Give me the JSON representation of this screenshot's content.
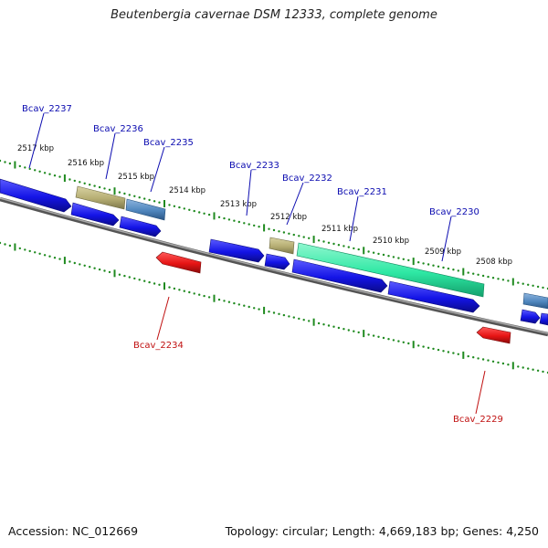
{
  "title": "Beutenbergia cavernae DSM 12333, complete genome",
  "footer": {
    "accession": "Accession: NC_012669",
    "topology": "Topology: circular; Length: 4,669,183 bp; Genes: 4,250"
  },
  "colors": {
    "forward_gene": "#1414e6",
    "reverse_gene": "#e61414",
    "olive_feature": "#b5ad72",
    "steelblue_feature": "#4f86bd",
    "green_feature": "#2ee8a4",
    "backbone": "#7a7a7a",
    "tick": "#1f8a1f",
    "forward_label": "#0b0bb0",
    "reverse_label": "#c01010"
  },
  "kbp_ticks": [
    "2517 kbp",
    "2516 kbp",
    "2515 kbp",
    "2514 kbp",
    "2513 kbp",
    "2512 kbp",
    "2511 kbp",
    "2510 kbp",
    "2509 kbp",
    "2508 kbp"
  ],
  "genes": [
    {
      "label": "Bcav_2237",
      "strand": "forward"
    },
    {
      "label": "Bcav_2236",
      "strand": "forward"
    },
    {
      "label": "Bcav_2235",
      "strand": "forward"
    },
    {
      "label": "Bcav_2234",
      "strand": "reverse"
    },
    {
      "label": "Bcav_2233",
      "strand": "forward"
    },
    {
      "label": "Bcav_2232",
      "strand": "forward"
    },
    {
      "label": "Bcav_2231",
      "strand": "forward"
    },
    {
      "label": "Bcav_2230",
      "strand": "forward"
    },
    {
      "label": "Bcav_2229",
      "strand": "reverse"
    }
  ]
}
